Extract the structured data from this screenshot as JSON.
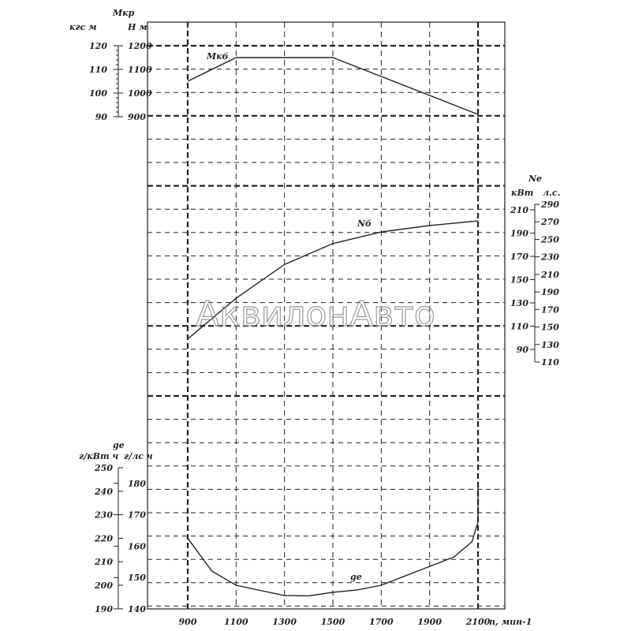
{
  "chart_data": {
    "type": "line",
    "x": [
      900,
      1100,
      1300,
      1500,
      1700,
      1900,
      2100
    ],
    "xlabel": "n, мин-1",
    "xlim": [
      900,
      2100
    ],
    "x_ticks": [
      "900",
      "1100",
      "1300",
      "1500",
      "1700",
      "1900",
      "2100"
    ],
    "grid": true,
    "watermark": "АквилонАвто",
    "series": [
      {
        "name": "Mкб",
        "axis_title": "Mкр",
        "units": [
          "кгс м",
          "Н м"
        ],
        "ylim": [
          900,
          1200
        ],
        "ticks_primary": [
          "1200",
          "1100",
          "1000",
          "900"
        ],
        "ticks_secondary": [
          "120",
          "110",
          "100",
          "90"
        ],
        "points": [
          [
            900,
            1050
          ],
          [
            1100,
            1150
          ],
          [
            1500,
            1150
          ],
          [
            1525,
            1140
          ],
          [
            2100,
            910
          ]
        ]
      },
      {
        "name": "Nб",
        "axis_title": "Ne",
        "units": [
          "кВт",
          "л.с."
        ],
        "ylim": [
          90,
          210
        ],
        "ticks_primary": [
          "210",
          "190",
          "170",
          "150",
          "130",
          "110",
          "90"
        ],
        "ticks_secondary": [
          "290",
          "270",
          "250",
          "230",
          "210",
          "190",
          "170",
          "150",
          "130",
          "110"
        ],
        "points": [
          [
            900,
            99
          ],
          [
            1100,
            134
          ],
          [
            1300,
            163
          ],
          [
            1500,
            181
          ],
          [
            1700,
            191
          ],
          [
            1900,
            196.5
          ],
          [
            2100,
            200.5
          ]
        ]
      },
      {
        "name": "ge",
        "axis_title": "ge",
        "units": [
          "г/кВт ч",
          "г/лс ч"
        ],
        "ylim": [
          190,
          250
        ],
        "ticks_primary": [
          "250",
          "240",
          "230",
          "220",
          "210",
          "200",
          "190"
        ],
        "ticks_secondary": [
          "180",
          "170",
          "160",
          "150",
          "140"
        ],
        "points": [
          [
            900,
            220
          ],
          [
            1000,
            206
          ],
          [
            1100,
            200
          ],
          [
            1300,
            195.6
          ],
          [
            1400,
            195.5
          ],
          [
            1500,
            197
          ],
          [
            1600,
            198
          ],
          [
            1700,
            200
          ],
          [
            1900,
            208
          ],
          [
            2000,
            212
          ],
          [
            2075,
            218.5
          ],
          [
            2100,
            227
          ],
          [
            2100,
            244
          ]
        ]
      }
    ]
  }
}
